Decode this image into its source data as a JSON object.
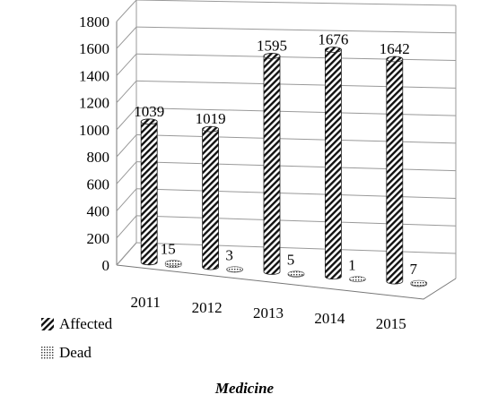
{
  "chart_data": {
    "type": "bar",
    "title": "Medicine",
    "categories": [
      "2011",
      "2012",
      "2013",
      "2014",
      "2015"
    ],
    "series": [
      {
        "name": "Affected",
        "values": [
          1039,
          1019,
          1595,
          1676,
          1642
        ]
      },
      {
        "name": "Dead",
        "values": [
          15,
          3,
          5,
          1,
          7
        ]
      }
    ],
    "ylim": [
      0,
      1800
    ],
    "yticks": [
      "0",
      "200",
      "400",
      "600",
      "800",
      "1000",
      "1200",
      "1400",
      "1600",
      "1800"
    ],
    "grid": true,
    "legend": "bottom-left",
    "style": "3d-cylinder"
  }
}
